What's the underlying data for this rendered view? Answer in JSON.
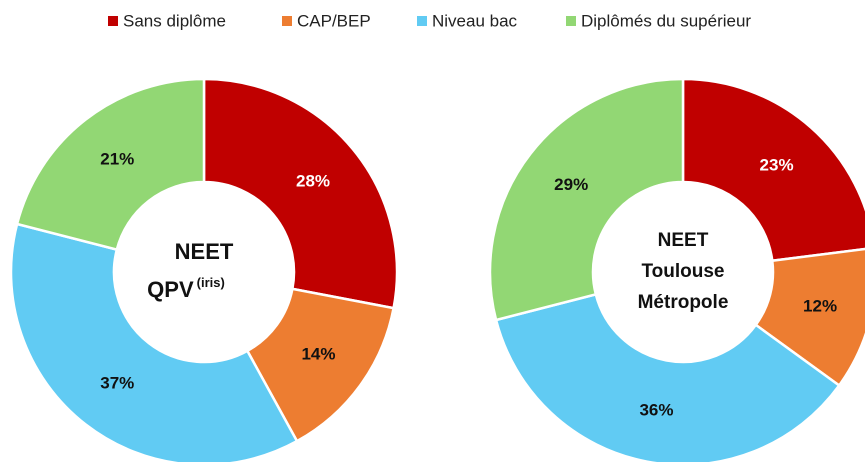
{
  "legend": {
    "categories": [
      "Sans diplôme",
      "CAP/BEP",
      "Niveau bac",
      "Diplômés du supérieur"
    ],
    "colors": [
      "#c00000",
      "#ed7d31",
      "#61cbf3",
      "#92d774"
    ]
  },
  "chart_data": [
    {
      "type": "pie",
      "donut": true,
      "values": [
        28,
        14,
        37,
        21
      ],
      "value_labels": [
        "28%",
        "14%",
        "37%",
        "21%"
      ],
      "center_label": [
        "NEET",
        "QPV"
      ],
      "center_superscript": "(iris)"
    },
    {
      "type": "pie",
      "donut": true,
      "values": [
        23,
        12,
        36,
        29
      ],
      "value_labels": [
        "23%",
        "12%",
        "36%",
        "29%"
      ],
      "center_label": [
        "NEET",
        "Toulouse",
        "Métropole"
      ]
    }
  ]
}
